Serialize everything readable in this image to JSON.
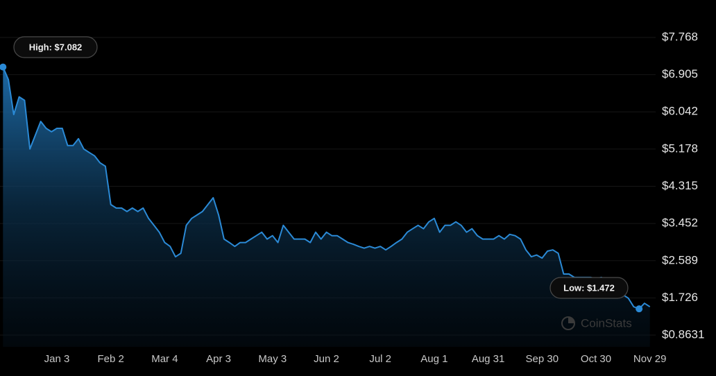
{
  "chart_data": {
    "type": "area",
    "categories": [
      null,
      null,
      null,
      null,
      null,
      null,
      null,
      null,
      null,
      null,
      "Jan 3",
      null,
      null,
      null,
      null,
      null,
      null,
      null,
      null,
      null,
      "Feb 2",
      null,
      null,
      null,
      null,
      null,
      null,
      null,
      null,
      null,
      "Mar 4",
      null,
      null,
      null,
      null,
      null,
      null,
      null,
      null,
      null,
      "Apr 3",
      null,
      null,
      null,
      null,
      null,
      null,
      null,
      null,
      null,
      "May 3",
      null,
      null,
      null,
      null,
      null,
      null,
      null,
      null,
      null,
      "Jun 2",
      null,
      null,
      null,
      null,
      null,
      null,
      null,
      null,
      null,
      "Jul 2",
      null,
      null,
      null,
      null,
      null,
      null,
      null,
      null,
      null,
      "Aug 1",
      null,
      null,
      null,
      null,
      null,
      null,
      null,
      null,
      null,
      "Aug 31",
      null,
      null,
      null,
      null,
      null,
      null,
      null,
      null,
      null,
      "Sep 30",
      null,
      null,
      null,
      null,
      null,
      null,
      null,
      null,
      null,
      "Oct 30",
      null,
      null,
      null,
      null,
      null,
      null,
      null,
      null,
      null,
      "Nov 29"
    ],
    "values": [
      7.082,
      6.79,
      5.98,
      6.39,
      6.31,
      5.18,
      5.5,
      5.82,
      5.66,
      5.58,
      5.66,
      5.66,
      5.26,
      5.26,
      5.42,
      5.18,
      5.1,
      5.02,
      4.86,
      4.78,
      3.89,
      3.81,
      3.81,
      3.73,
      3.81,
      3.73,
      3.81,
      3.57,
      3.41,
      3.25,
      3.01,
      2.92,
      2.68,
      2.76,
      3.41,
      3.57,
      3.65,
      3.73,
      3.89,
      4.05,
      3.65,
      3.09,
      3.01,
      2.92,
      3.01,
      3.01,
      3.09,
      3.17,
      3.25,
      3.09,
      3.17,
      3.01,
      3.41,
      3.25,
      3.09,
      3.09,
      3.09,
      3.01,
      3.25,
      3.09,
      3.25,
      3.17,
      3.17,
      3.09,
      3.01,
      2.97,
      2.92,
      2.88,
      2.92,
      2.88,
      2.92,
      2.84,
      2.92,
      3.01,
      3.09,
      3.25,
      3.33,
      3.41,
      3.33,
      3.49,
      3.57,
      3.25,
      3.41,
      3.41,
      3.49,
      3.41,
      3.25,
      3.33,
      3.17,
      3.09,
      3.09,
      3.09,
      3.17,
      3.09,
      3.2,
      3.17,
      3.09,
      2.84,
      2.68,
      2.72,
      2.65,
      2.81,
      2.84,
      2.76,
      2.28,
      2.28,
      2.2,
      2.2,
      2.2,
      2.2,
      2.17,
      2.2,
      2.12,
      1.96,
      1.88,
      1.8,
      1.72,
      1.52,
      1.472,
      1.6,
      1.52
    ],
    "color": "#2b8ad6",
    "ylim": [
      0.8631,
      7.768
    ],
    "yticks": [
      {
        "value": 0.8631,
        "label": "$0.8631"
      },
      {
        "value": 1.726,
        "label": "$1.726"
      },
      {
        "value": 2.589,
        "label": "$2.589"
      },
      {
        "value": 3.452,
        "label": "$3.452"
      },
      {
        "value": 4.315,
        "label": "$4.315"
      },
      {
        "value": 5.178,
        "label": "$5.178"
      },
      {
        "value": 6.042,
        "label": "$6.042"
      },
      {
        "value": 6.905,
        "label": "$6.905"
      },
      {
        "value": 7.768,
        "label": "$7.768"
      }
    ],
    "grid": true,
    "high_label": "High: $7.082",
    "low_label": "Low: $1.472",
    "watermark": "CoinStats"
  }
}
